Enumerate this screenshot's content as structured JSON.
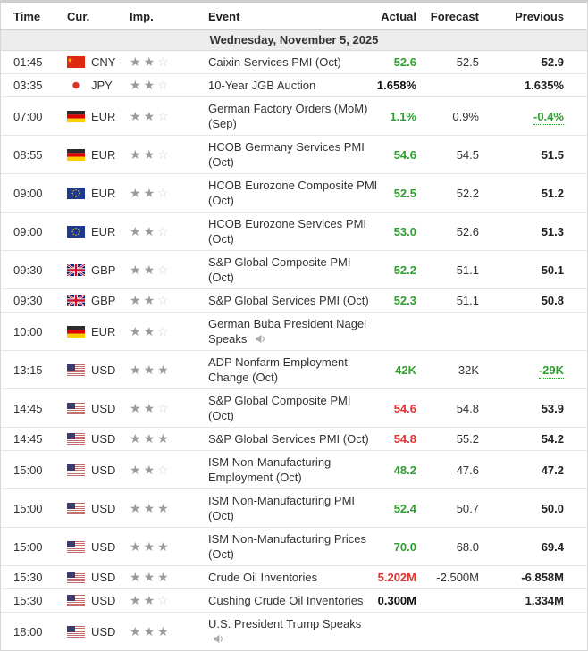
{
  "table": {
    "columns": {
      "time": "Time",
      "cur": "Cur.",
      "imp": "Imp.",
      "event": "Event",
      "actual": "Actual",
      "forecast": "Forecast",
      "previous": "Previous"
    },
    "date_header": "Wednesday, November 5, 2025",
    "importance_max_stars": 3,
    "colors": {
      "better": "#2e9e2e",
      "worse": "#dd3333",
      "neutral": "#111111"
    },
    "rows": [
      {
        "time": "01:45",
        "currency": "CNY",
        "flag": "cn",
        "stars": 2,
        "event_lines": [
          "Caixin Services PMI (Oct)"
        ],
        "speech": false,
        "actual": "52.6",
        "actual_tone": "better",
        "forecast": "52.5",
        "previous": "52.9",
        "previous_tone": "",
        "previous_revised": false
      },
      {
        "time": "03:35",
        "currency": "JPY",
        "flag": "jp",
        "stars": 2,
        "event_lines": [
          "10-Year JGB Auction"
        ],
        "speech": false,
        "actual": "1.658%",
        "actual_tone": "neutral",
        "forecast": "",
        "previous": "1.635%",
        "previous_tone": "",
        "previous_revised": false
      },
      {
        "time": "07:00",
        "currency": "EUR",
        "flag": "de",
        "stars": 2,
        "event_lines": [
          "German Factory Orders (MoM)",
          "(Sep)"
        ],
        "speech": false,
        "actual": "1.1%",
        "actual_tone": "better",
        "forecast": "0.9%",
        "previous": "-0.4%",
        "previous_tone": "better",
        "previous_revised": true
      },
      {
        "time": "08:55",
        "currency": "EUR",
        "flag": "de",
        "stars": 2,
        "event_lines": [
          "HCOB Germany Services PMI",
          "(Oct)"
        ],
        "speech": false,
        "actual": "54.6",
        "actual_tone": "better",
        "forecast": "54.5",
        "previous": "51.5",
        "previous_tone": "",
        "previous_revised": false
      },
      {
        "time": "09:00",
        "currency": "EUR",
        "flag": "eu",
        "stars": 2,
        "event_lines": [
          "HCOB Eurozone Composite PMI",
          "(Oct)"
        ],
        "speech": false,
        "actual": "52.5",
        "actual_tone": "better",
        "forecast": "52.2",
        "previous": "51.2",
        "previous_tone": "",
        "previous_revised": false
      },
      {
        "time": "09:00",
        "currency": "EUR",
        "flag": "eu",
        "stars": 2,
        "event_lines": [
          "HCOB Eurozone Services PMI",
          "(Oct)"
        ],
        "speech": false,
        "actual": "53.0",
        "actual_tone": "better",
        "forecast": "52.6",
        "previous": "51.3",
        "previous_tone": "",
        "previous_revised": false
      },
      {
        "time": "09:30",
        "currency": "GBP",
        "flag": "gb",
        "stars": 2,
        "event_lines": [
          "S&P Global Composite PMI",
          "(Oct)"
        ],
        "speech": false,
        "actual": "52.2",
        "actual_tone": "better",
        "forecast": "51.1",
        "previous": "50.1",
        "previous_tone": "",
        "previous_revised": false
      },
      {
        "time": "09:30",
        "currency": "GBP",
        "flag": "gb",
        "stars": 2,
        "event_lines": [
          "S&P Global Services PMI (Oct)"
        ],
        "speech": false,
        "actual": "52.3",
        "actual_tone": "better",
        "forecast": "51.1",
        "previous": "50.8",
        "previous_tone": "",
        "previous_revised": false
      },
      {
        "time": "10:00",
        "currency": "EUR",
        "flag": "de",
        "stars": 2,
        "event_lines": [
          "German Buba President Nagel",
          "Speaks"
        ],
        "speech": true,
        "actual": "",
        "actual_tone": "",
        "forecast": "",
        "previous": "",
        "previous_tone": "",
        "previous_revised": false
      },
      {
        "time": "13:15",
        "currency": "USD",
        "flag": "us",
        "stars": 3,
        "event_lines": [
          "ADP Nonfarm Employment",
          "Change (Oct)"
        ],
        "speech": false,
        "actual": "42K",
        "actual_tone": "better",
        "forecast": "32K",
        "previous": "-29K",
        "previous_tone": "better",
        "previous_revised": true
      },
      {
        "time": "14:45",
        "currency": "USD",
        "flag": "us",
        "stars": 2,
        "event_lines": [
          "S&P Global Composite PMI",
          "(Oct)"
        ],
        "speech": false,
        "actual": "54.6",
        "actual_tone": "worse",
        "forecast": "54.8",
        "previous": "53.9",
        "previous_tone": "",
        "previous_revised": false
      },
      {
        "time": "14:45",
        "currency": "USD",
        "flag": "us",
        "stars": 3,
        "event_lines": [
          "S&P Global Services PMI (Oct)"
        ],
        "speech": false,
        "actual": "54.8",
        "actual_tone": "worse",
        "forecast": "55.2",
        "previous": "54.2",
        "previous_tone": "",
        "previous_revised": false
      },
      {
        "time": "15:00",
        "currency": "USD",
        "flag": "us",
        "stars": 2,
        "event_lines": [
          "ISM Non-Manufacturing",
          "Employment (Oct)"
        ],
        "speech": false,
        "actual": "48.2",
        "actual_tone": "better",
        "forecast": "47.6",
        "previous": "47.2",
        "previous_tone": "",
        "previous_revised": false
      },
      {
        "time": "15:00",
        "currency": "USD",
        "flag": "us",
        "stars": 3,
        "event_lines": [
          "ISM Non-Manufacturing PMI",
          "(Oct)"
        ],
        "speech": false,
        "actual": "52.4",
        "actual_tone": "better",
        "forecast": "50.7",
        "previous": "50.0",
        "previous_tone": "",
        "previous_revised": false
      },
      {
        "time": "15:00",
        "currency": "USD",
        "flag": "us",
        "stars": 3,
        "event_lines": [
          "ISM Non-Manufacturing Prices",
          "(Oct)"
        ],
        "speech": false,
        "actual": "70.0",
        "actual_tone": "better",
        "forecast": "68.0",
        "previous": "69.4",
        "previous_tone": "",
        "previous_revised": false
      },
      {
        "time": "15:30",
        "currency": "USD",
        "flag": "us",
        "stars": 3,
        "event_lines": [
          "Crude Oil Inventories"
        ],
        "speech": false,
        "actual": "5.202M",
        "actual_tone": "worse",
        "forecast": "-2.500M",
        "previous": "-6.858M",
        "previous_tone": "",
        "previous_revised": false
      },
      {
        "time": "15:30",
        "currency": "USD",
        "flag": "us",
        "stars": 2,
        "event_lines": [
          "Cushing Crude Oil Inventories"
        ],
        "speech": false,
        "actual": "0.300M",
        "actual_tone": "neutral",
        "forecast": "",
        "previous": "1.334M",
        "previous_tone": "",
        "previous_revised": false
      },
      {
        "time": "18:00",
        "currency": "USD",
        "flag": "us",
        "stars": 3,
        "event_lines": [
          "U.S. President Trump Speaks",
          ""
        ],
        "speech": true,
        "actual": "",
        "actual_tone": "",
        "forecast": "",
        "previous": "",
        "previous_tone": "",
        "previous_revised": false
      }
    ]
  }
}
